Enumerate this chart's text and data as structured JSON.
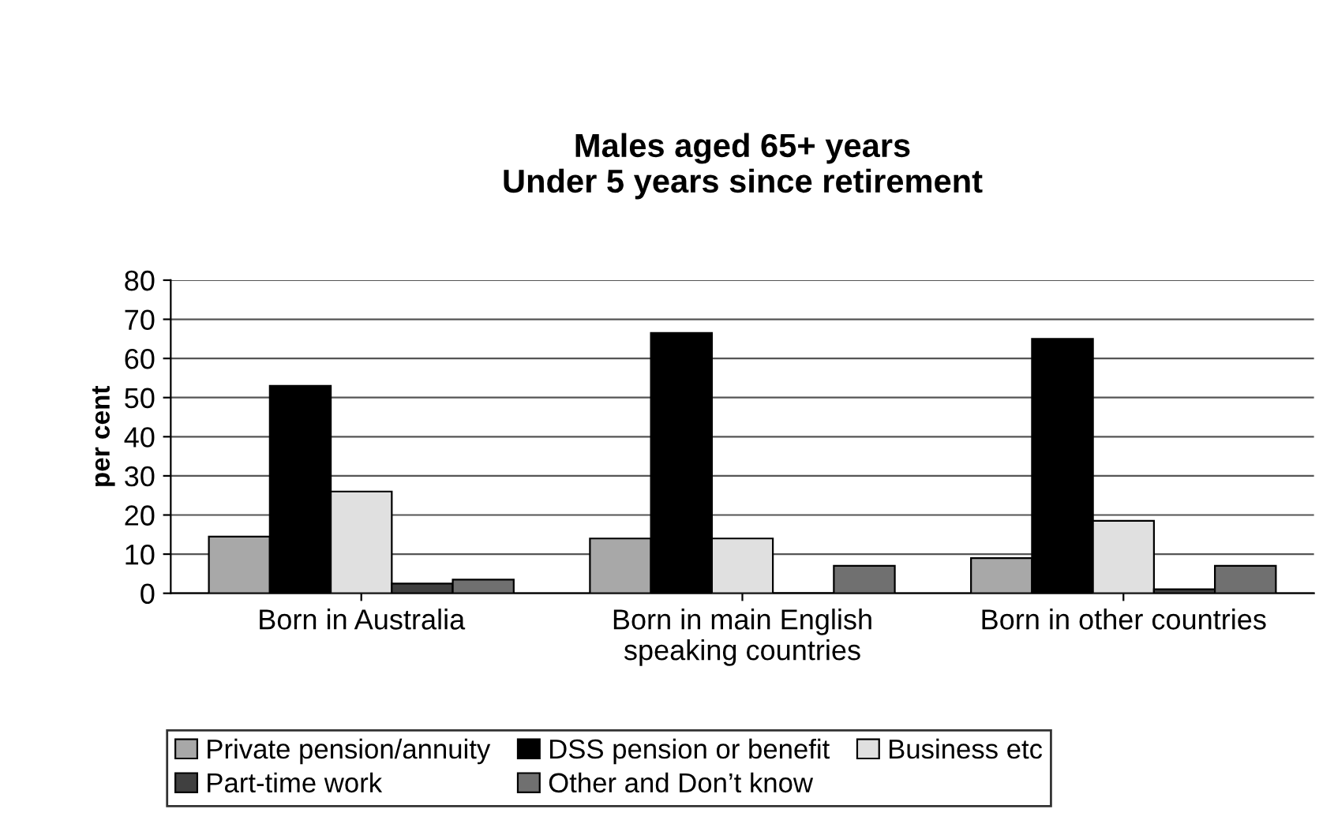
{
  "chart_data": {
    "type": "bar",
    "title": "Males aged 65+ years\nUnder 5 years since retirement",
    "ylabel": "per cent",
    "categories": [
      "Born in Australia",
      "Born in main English\nspeaking countries",
      "Born in other countries"
    ],
    "series": [
      {
        "name": "Private pension/annuity",
        "color": "#a8a8a8",
        "values": [
          14.5,
          14,
          9
        ]
      },
      {
        "name": "DSS pension or benefit",
        "color": "#000000",
        "values": [
          53,
          66.5,
          65
        ]
      },
      {
        "name": "Business etc",
        "color": "#e0e0e0",
        "values": [
          26,
          14,
          18.5
        ]
      },
      {
        "name": "Part-time work",
        "color": "#404040",
        "values": [
          2.5,
          0,
          1
        ]
      },
      {
        "name": "Other and Don’t know",
        "color": "#707070",
        "values": [
          3.5,
          7,
          7
        ]
      }
    ],
    "ylim": [
      0,
      80
    ],
    "yticks": [
      0,
      10,
      20,
      30,
      40,
      50,
      60,
      70,
      80
    ],
    "grid": "y",
    "legend": "bottom"
  }
}
